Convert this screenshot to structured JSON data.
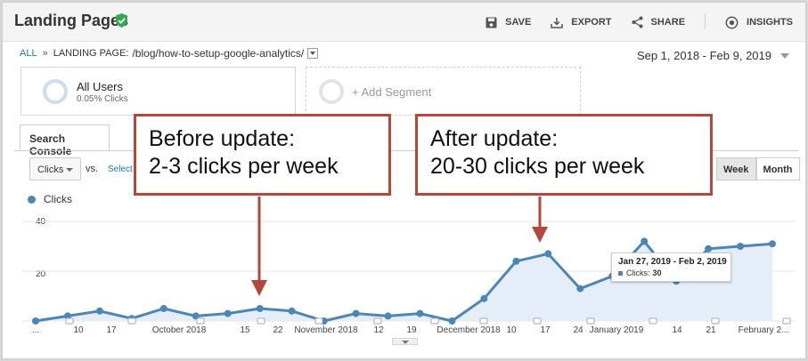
{
  "header": {
    "title": "Landing Pages",
    "actions": [
      {
        "label": "SAVE",
        "icon": "save-icon"
      },
      {
        "label": "EXPORT",
        "icon": "export-icon"
      },
      {
        "label": "SHARE",
        "icon": "share-icon"
      },
      {
        "label": "INSIGHTS",
        "icon": "insights-icon"
      }
    ]
  },
  "breadcrumb": {
    "all": "ALL",
    "separator": "»",
    "dimension": "LANDING PAGE:",
    "path": "/blog/how-to-setup-google-analytics/"
  },
  "date_range": "Sep 1, 2018 - Feb 9, 2019",
  "segment": {
    "name": "All Users",
    "sub": "0.05% Clicks"
  },
  "add_segment": "+ Add Segment",
  "tab": "Search Console",
  "controls": {
    "metric": "Clicks",
    "vs": "vs.",
    "select_metric": "Select",
    "period_week": "Week",
    "period_month": "Month"
  },
  "legend": "Clicks",
  "tooltip": {
    "date": "Jan 27, 2019 - Feb 2, 2019",
    "label": "Clicks:",
    "value": "30"
  },
  "callouts": {
    "before_line1": "Before update:",
    "before_line2": "2-3 clicks per week",
    "after_line1": "After update:",
    "after_line2": "20-30 clicks per week"
  },
  "colors": {
    "series": "#4a86b8",
    "area": "#e5eef8",
    "callout_border": "#b5473a",
    "link": "#1a73c9"
  },
  "chart_data": {
    "type": "area",
    "series": [
      {
        "name": "Clicks",
        "values": [
          0,
          2,
          4,
          1,
          5,
          2,
          3,
          5,
          4,
          0,
          3,
          2,
          3,
          0,
          9,
          24,
          27,
          13,
          18,
          32,
          16,
          29,
          30,
          31
        ]
      }
    ],
    "ylim": [
      0,
      40
    ],
    "yticks": [
      "40",
      "20"
    ],
    "xtick_labels": [
      "...",
      "10",
      "17",
      "October 2018",
      "15",
      "22",
      "November 2018",
      "12",
      "19",
      "December 2018",
      "10",
      "17",
      "24",
      "January 2019",
      "14",
      "21",
      "February 2..."
    ],
    "grid": true
  }
}
